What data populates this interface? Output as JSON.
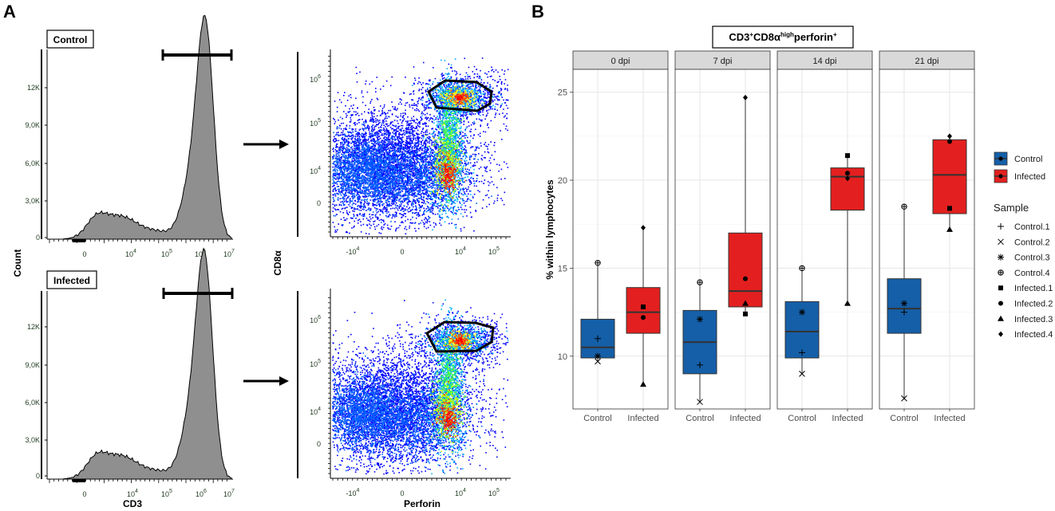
{
  "panel_a": {
    "letter": "A",
    "control_label": "Control",
    "infected_label": "Infected",
    "hist_y_title": "Count",
    "hist_x_title": "CD3",
    "scatter_y_title": "CD8α",
    "scatter_x_title": "Perforin",
    "hist_y_ticks": [
      "12K",
      "9,0K",
      "6,0K",
      "3,0K",
      "0"
    ],
    "hist_x_ticks": [
      {
        "base": "0",
        "exp": ""
      },
      {
        "base": "10",
        "exp": "4"
      },
      {
        "base": "10",
        "exp": "5"
      },
      {
        "base": "10",
        "exp": "6"
      },
      {
        "base": "10",
        "exp": "7"
      }
    ],
    "scatter_y_ticks": [
      {
        "base": "10",
        "exp": "6"
      },
      {
        "base": "10",
        "exp": "5"
      },
      {
        "base": "10",
        "exp": "4"
      },
      {
        "base": "0",
        "exp": ""
      }
    ],
    "scatter_x_ticks": [
      {
        "base": "-10",
        "exp": "4"
      },
      {
        "base": "0",
        "exp": ""
      },
      {
        "base": "10",
        "exp": "4"
      },
      {
        "base": "10",
        "exp": "5"
      }
    ]
  },
  "panel_b": {
    "letter": "B"
  },
  "colors": {
    "control": "#155fa8",
    "infected": "#e3201f",
    "strip_bg": "#d9d9d9",
    "hist_fill": "#8f8f8f"
  },
  "chart_data": {
    "type": "box",
    "title_parts": [
      "CD3",
      "+",
      "CD8α",
      "high",
      "perforin",
      "+"
    ],
    "ylabel": "% within lymphocytes",
    "xlabel": "",
    "ylim": [
      7.0,
      26.3
    ],
    "yticks": [
      10,
      15,
      20,
      25
    ],
    "categories": [
      "Control",
      "Infected"
    ],
    "facets": [
      {
        "label": "0 dpi",
        "boxes": [
          {
            "group": "Control",
            "q1": 9.9,
            "median": 10.5,
            "q3": 12.1,
            "whisker_low": 9.7,
            "whisker_high": 15.3
          },
          {
            "group": "Infected",
            "q1": 11.3,
            "median": 12.5,
            "q3": 13.9,
            "whisker_low": 8.4,
            "whisker_high": 17.3
          }
        ],
        "points": [
          {
            "sample": "Control.1",
            "group": "Control",
            "value": 11.0
          },
          {
            "sample": "Control.2",
            "group": "Control",
            "value": 9.7
          },
          {
            "sample": "Control.3",
            "group": "Control",
            "value": 10.0
          },
          {
            "sample": "Control.4",
            "group": "Control",
            "value": 15.3
          },
          {
            "sample": "Infected.1",
            "group": "Infected",
            "value": 12.8
          },
          {
            "sample": "Infected.2",
            "group": "Infected",
            "value": 12.2
          },
          {
            "sample": "Infected.3",
            "group": "Infected",
            "value": 8.4
          },
          {
            "sample": "Infected.4",
            "group": "Infected",
            "value": 17.3
          }
        ]
      },
      {
        "label": "7 dpi",
        "boxes": [
          {
            "group": "Control",
            "q1": 9.0,
            "median": 10.8,
            "q3": 12.6,
            "whisker_low": 7.4,
            "whisker_high": 14.2
          },
          {
            "group": "Infected",
            "q1": 12.8,
            "median": 13.7,
            "q3": 17.0,
            "whisker_low": 12.4,
            "whisker_high": 24.7
          }
        ],
        "points": [
          {
            "sample": "Control.1",
            "group": "Control",
            "value": 9.5
          },
          {
            "sample": "Control.2",
            "group": "Control",
            "value": 7.4
          },
          {
            "sample": "Control.3",
            "group": "Control",
            "value": 12.1
          },
          {
            "sample": "Control.4",
            "group": "Control",
            "value": 14.2
          },
          {
            "sample": "Infected.1",
            "group": "Infected",
            "value": 12.4
          },
          {
            "sample": "Infected.2",
            "group": "Infected",
            "value": 14.4
          },
          {
            "sample": "Infected.3",
            "group": "Infected",
            "value": 13.0
          },
          {
            "sample": "Infected.4",
            "group": "Infected",
            "value": 24.7
          }
        ]
      },
      {
        "label": "14 dpi",
        "boxes": [
          {
            "group": "Control",
            "q1": 9.9,
            "median": 11.4,
            "q3": 13.1,
            "whisker_low": 9.0,
            "whisker_high": 15.0
          },
          {
            "group": "Infected",
            "q1": 18.3,
            "median": 20.2,
            "q3": 20.7,
            "whisker_low": 13.0,
            "whisker_high": 21.4
          }
        ],
        "points": [
          {
            "sample": "Control.1",
            "group": "Control",
            "value": 10.2
          },
          {
            "sample": "Control.2",
            "group": "Control",
            "value": 9.0
          },
          {
            "sample": "Control.3",
            "group": "Control",
            "value": 12.5
          },
          {
            "sample": "Control.4",
            "group": "Control",
            "value": 15.0
          },
          {
            "sample": "Infected.1",
            "group": "Infected",
            "value": 21.4
          },
          {
            "sample": "Infected.2",
            "group": "Infected",
            "value": 20.4
          },
          {
            "sample": "Infected.3",
            "group": "Infected",
            "value": 13.0
          },
          {
            "sample": "Infected.4",
            "group": "Infected",
            "value": 20.1
          }
        ]
      },
      {
        "label": "21 dpi",
        "boxes": [
          {
            "group": "Control",
            "q1": 11.3,
            "median": 12.7,
            "q3": 14.4,
            "whisker_low": 7.6,
            "whisker_high": 18.5
          },
          {
            "group": "Infected",
            "q1": 18.1,
            "median": 20.3,
            "q3": 22.3,
            "whisker_low": 17.2,
            "whisker_high": 22.5
          }
        ],
        "points": [
          {
            "sample": "Control.1",
            "group": "Control",
            "value": 12.5
          },
          {
            "sample": "Control.2",
            "group": "Control",
            "value": 7.6
          },
          {
            "sample": "Control.3",
            "group": "Control",
            "value": 13.0
          },
          {
            "sample": "Control.4",
            "group": "Control",
            "value": 18.5
          },
          {
            "sample": "Infected.1",
            "group": "Infected",
            "value": 18.4
          },
          {
            "sample": "Infected.2",
            "group": "Infected",
            "value": 22.2
          },
          {
            "sample": "Infected.3",
            "group": "Infected",
            "value": 17.2
          },
          {
            "sample": "Infected.4",
            "group": "Infected",
            "value": 22.5
          }
        ]
      }
    ],
    "legend": {
      "fill_items": [
        "Control",
        "Infected"
      ],
      "shape_title": "Sample",
      "shape_items": [
        "Control.1",
        "Control.2",
        "Control.3",
        "Control.4",
        "Infected.1",
        "Infected.2",
        "Infected.3",
        "Infected.4"
      ]
    }
  }
}
